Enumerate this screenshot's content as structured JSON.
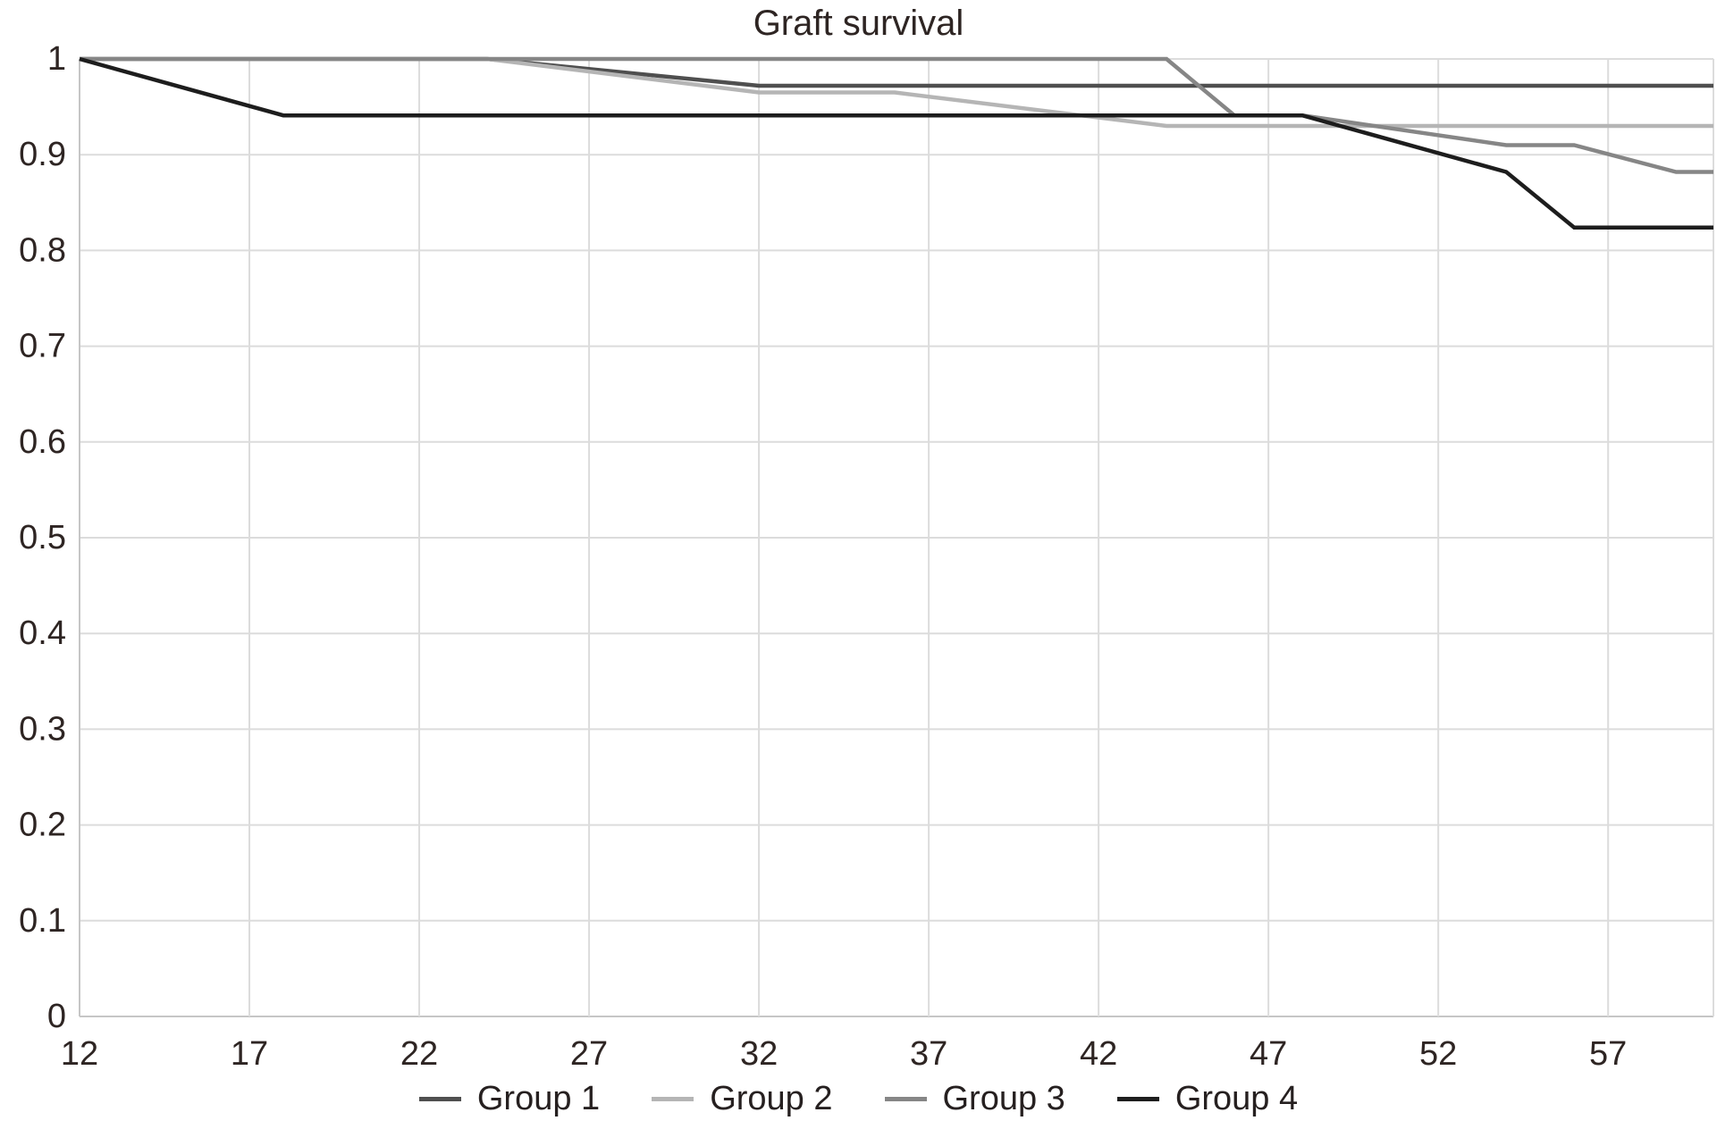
{
  "title": "Graft survival",
  "chart_data": {
    "type": "line",
    "title": "Graft survival",
    "xlabel": "",
    "ylabel": "",
    "x_ticks": [
      12,
      17,
      22,
      27,
      32,
      37,
      42,
      47,
      52,
      57
    ],
    "y_ticks": [
      0,
      0.1,
      0.2,
      0.3,
      0.4,
      0.5,
      0.6,
      0.7,
      0.8,
      0.9,
      1
    ],
    "y_tick_labels": [
      "0",
      "0.1",
      "0.2",
      "0.3",
      "0.4",
      "0.5",
      "0.6",
      "0.7",
      "0.8",
      "0.9",
      "1"
    ],
    "xlim": [
      12,
      60.1
    ],
    "ylim": [
      0,
      1
    ],
    "grid": true,
    "legend_position": "bottom-center",
    "series": [
      {
        "name": "Group 1",
        "color": "#4f4f4f",
        "points": [
          [
            12,
            1
          ],
          [
            24,
            1
          ],
          [
            32,
            0.972
          ],
          [
            60,
            0.972
          ]
        ]
      },
      {
        "name": "Group 2",
        "color": "#b5b5b5",
        "points": [
          [
            12,
            1
          ],
          [
            24,
            1
          ],
          [
            32,
            0.965
          ],
          [
            36,
            0.965
          ],
          [
            44,
            0.93
          ],
          [
            60,
            0.93
          ]
        ]
      },
      {
        "name": "Group 3",
        "color": "#868686",
        "points": [
          [
            12,
            1
          ],
          [
            44,
            1
          ],
          [
            46,
            0.941
          ],
          [
            48,
            0.941
          ],
          [
            54,
            0.91
          ],
          [
            56,
            0.91
          ],
          [
            59,
            0.882
          ],
          [
            60,
            0.882
          ]
        ]
      },
      {
        "name": "Group 4",
        "color": "#1d1d1d",
        "points": [
          [
            12,
            1
          ],
          [
            18,
            0.941
          ],
          [
            48,
            0.941
          ],
          [
            54,
            0.882
          ],
          [
            56,
            0.824
          ],
          [
            60,
            0.824
          ]
        ]
      }
    ],
    "colors": {
      "gridline": "#dcdcdc",
      "axis_line": "#c6c6c6",
      "text": "#2e2523",
      "background": "#ffffff"
    }
  }
}
